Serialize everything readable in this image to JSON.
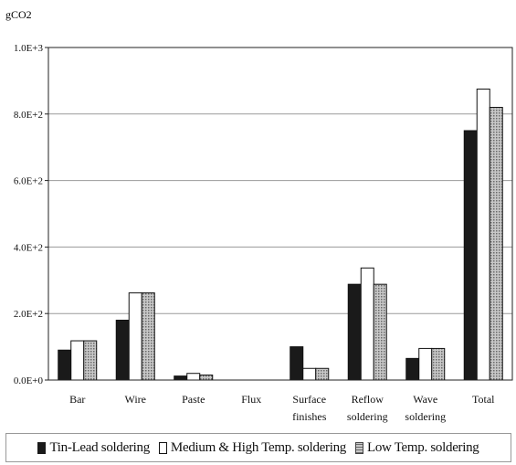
{
  "chart_data": {
    "type": "bar",
    "unit": "gCO2",
    "categories": [
      [
        "Bar"
      ],
      [
        "Wire"
      ],
      [
        "Paste"
      ],
      [
        "Flux"
      ],
      [
        "Surface",
        "finishes"
      ],
      [
        "Reflow",
        "soldering"
      ],
      [
        "Wave",
        "soldering"
      ],
      [
        "Total"
      ]
    ],
    "y_ticks": [
      "0.0E+0",
      "2.0E+2",
      "4.0E+2",
      "6.0E+2",
      "8.0E+2",
      "1.0E+3"
    ],
    "ylim": [
      0,
      1000
    ],
    "grid": true,
    "legend_position": "bottom",
    "series": [
      {
        "name": "Tin-Lead soldering",
        "color": "#1a1a1a",
        "values": [
          90,
          180,
          12,
          0,
          100,
          288,
          65,
          750
        ]
      },
      {
        "name": "Medium & High Temp. soldering",
        "color": "#ffffff",
        "values": [
          118,
          262,
          20,
          0,
          35,
          337,
          95,
          875
        ]
      },
      {
        "name": "Low Temp. soldering",
        "color": "#9a9a9a",
        "values": [
          118,
          262,
          15,
          0,
          35,
          288,
          95,
          820
        ]
      }
    ]
  }
}
